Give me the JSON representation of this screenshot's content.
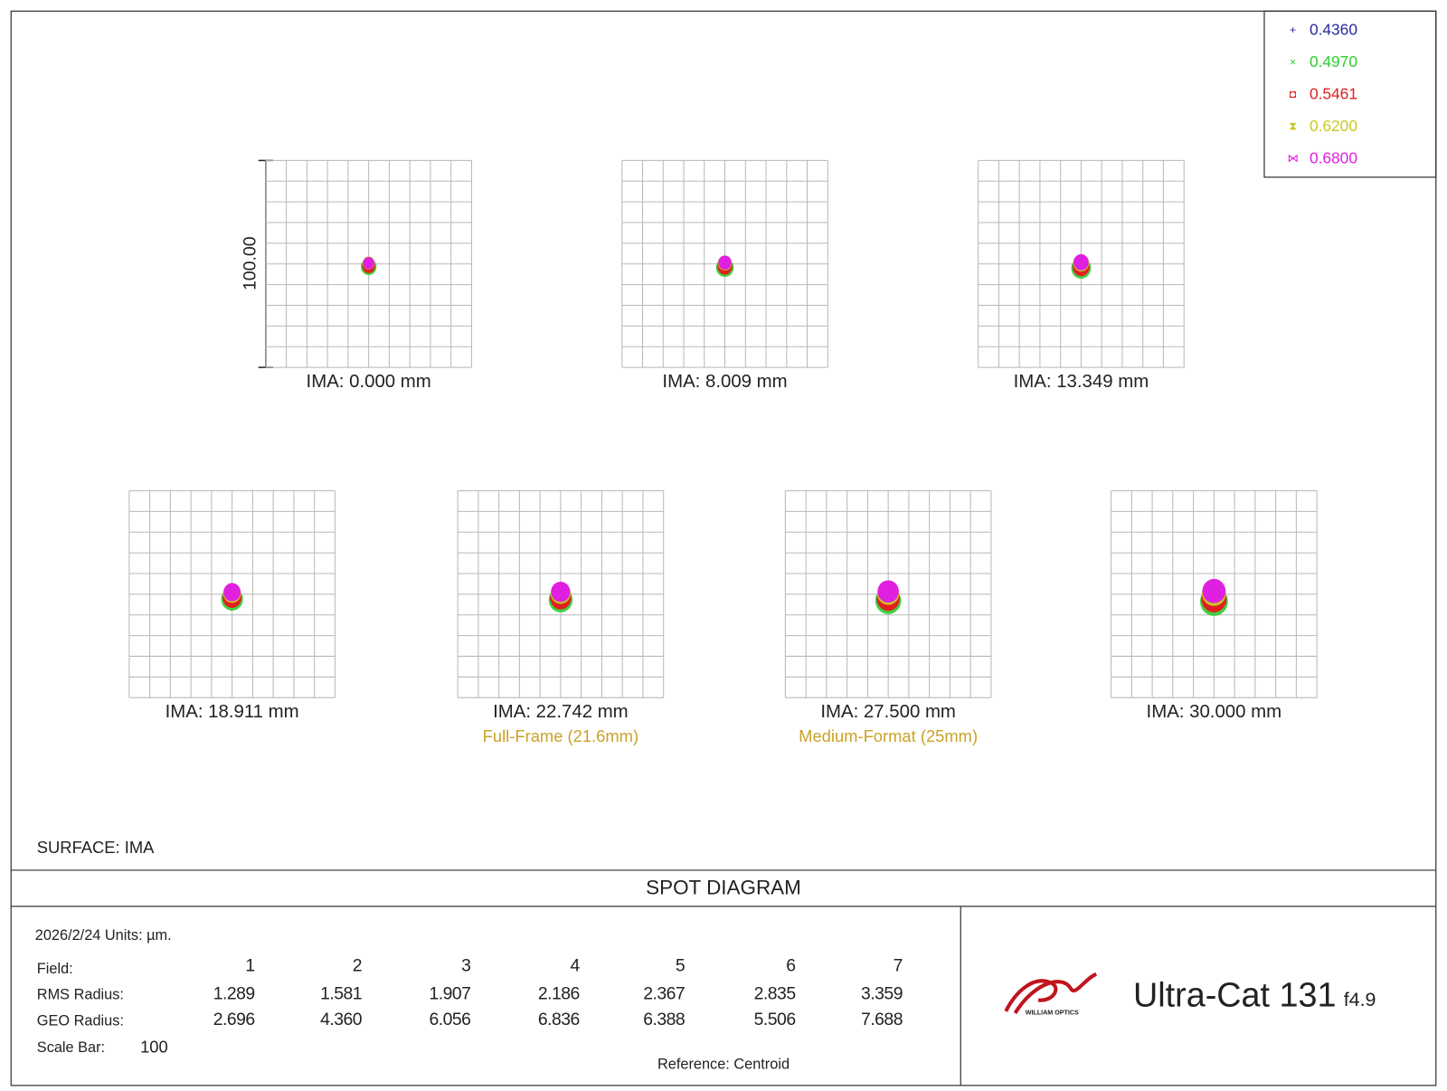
{
  "legend": [
    {
      "marker": "+",
      "label": "0.4360",
      "color": "#2a2aa0"
    },
    {
      "marker": "×",
      "label": "0.4970",
      "color": "#2ecc2e"
    },
    {
      "marker": "◘",
      "label": "0.5461",
      "color": "#e02020"
    },
    {
      "marker": "⧗",
      "label": "0.6200",
      "color": "#c8c820"
    },
    {
      "marker": "⋈",
      "label": "0.6800",
      "color": "#e020e0"
    }
  ],
  "panels": [
    {
      "label": "IMA: 0.000 mm"
    },
    {
      "label": "IMA: 8.009 mm"
    },
    {
      "label": "IMA: 13.349 mm"
    },
    {
      "label": "IMA: 18.911 mm"
    },
    {
      "label": "IMA: 22.742 mm",
      "note": "Full-Frame (21.6mm)"
    },
    {
      "label": "IMA: 27.500 mm",
      "note": "Medium-Format (25mm)"
    },
    {
      "label": "IMA: 30.000 mm"
    }
  ],
  "note_color": "#c9a227",
  "scale_label": "100.00",
  "surface": "SURFACE: IMA",
  "title": "SPOT DIAGRAM",
  "info": "2026/2/24  Units: µm.",
  "table": {
    "row_labels": [
      "Field:",
      "RMS Radius:",
      "GEO Radius:"
    ],
    "fields": [
      "1",
      "2",
      "3",
      "4",
      "5",
      "6",
      "7"
    ],
    "rms": [
      "1.289",
      "1.581",
      "1.907",
      "2.186",
      "2.367",
      "2.835",
      "3.359"
    ],
    "geo": [
      "2.696",
      "4.360",
      "6.056",
      "6.836",
      "6.388",
      "5.506",
      "7.688"
    ]
  },
  "scale_bar": {
    "label": "Scale Bar:",
    "value": "100"
  },
  "reference": "Reference: Centroid",
  "logo": "WILLIAM OPTICS",
  "product": "Ultra-Cat 131",
  "aperture": "f4.9"
}
